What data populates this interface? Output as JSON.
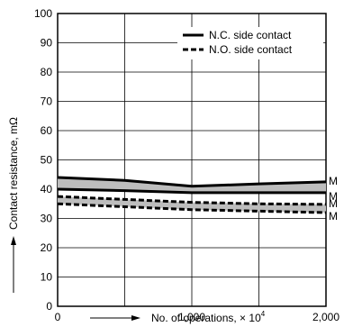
{
  "chart_data": {
    "type": "line",
    "title": "",
    "xlabel": "No. of operations, × 10",
    "xlabel_superscript": "4",
    "ylabel": "Contact resistance, mΩ",
    "x_ticks": [
      "0",
      "1,000",
      "2,000"
    ],
    "x_tick_values": [
      0,
      1000,
      2000
    ],
    "y_ticks": [
      "0",
      "10",
      "20",
      "30",
      "40",
      "50",
      "60",
      "70",
      "80",
      "90",
      "100"
    ],
    "y_tick_values": [
      0,
      10,
      20,
      30,
      40,
      50,
      60,
      70,
      80,
      90,
      100
    ],
    "xlim": [
      0,
      2000
    ],
    "ylim": [
      0,
      100
    ],
    "grid": true,
    "legend_position": "top-right",
    "legend": [
      {
        "label": "N.C. side contact",
        "style": "solid"
      },
      {
        "label": "N.O. side contact",
        "style": "dashed"
      }
    ],
    "series": [
      {
        "name": "N.C. side contact",
        "style": "solid",
        "max": {
          "x": [
            0,
            500,
            1000,
            1500,
            2000
          ],
          "y": [
            44,
            43,
            41,
            41.8,
            42.5
          ]
        },
        "min": {
          "x": [
            0,
            500,
            1000,
            1500,
            2000
          ],
          "y": [
            40,
            39.5,
            38.8,
            38.8,
            38.8
          ]
        },
        "max_label": "M",
        "min_label": "M"
      },
      {
        "name": "N.O. side contact",
        "style": "dashed",
        "max": {
          "x": [
            0,
            500,
            1000,
            1500,
            2000
          ],
          "y": [
            37.5,
            36.5,
            35.5,
            35,
            34.8
          ]
        },
        "min": {
          "x": [
            0,
            500,
            1000,
            1500,
            2000
          ],
          "y": [
            35,
            34,
            33,
            32.5,
            32
          ]
        },
        "max_label": "M",
        "min_label": "M"
      }
    ]
  }
}
